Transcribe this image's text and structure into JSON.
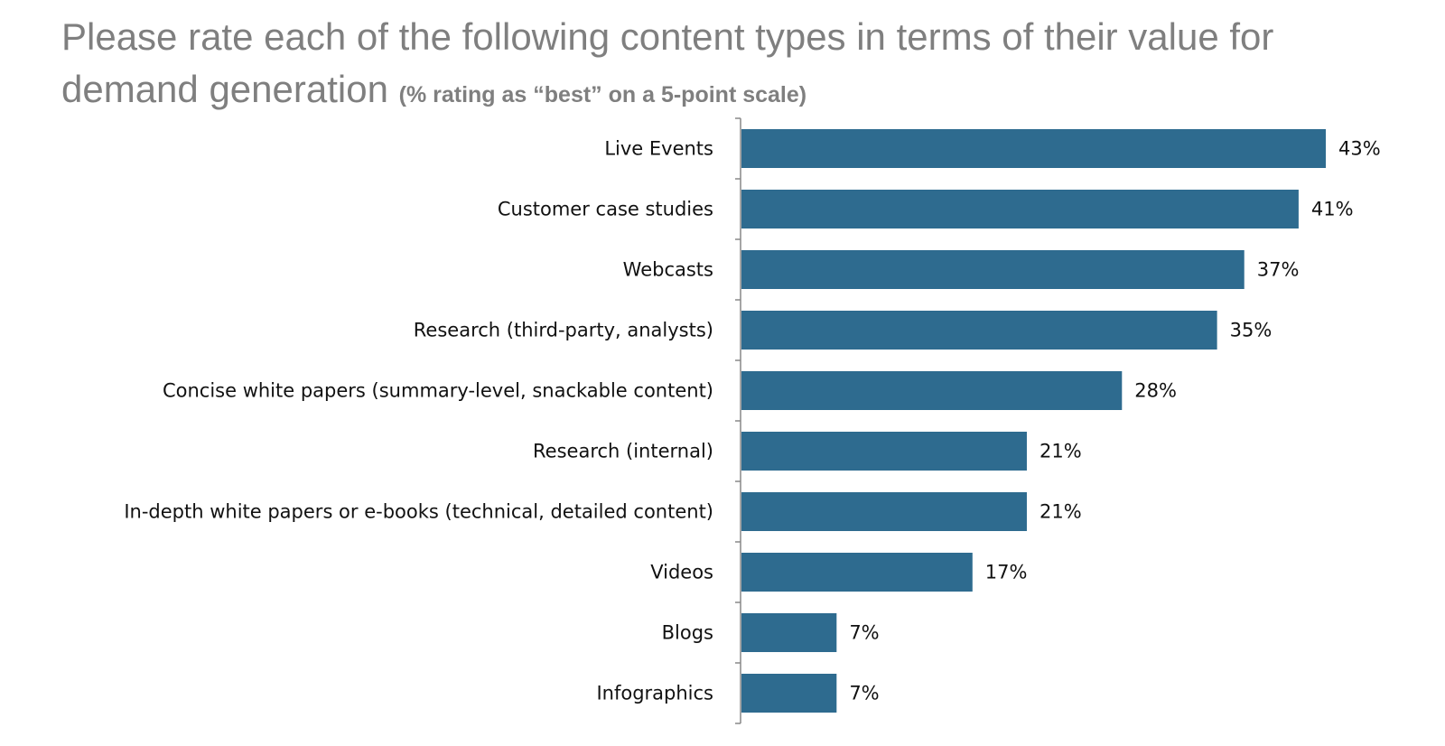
{
  "title": {
    "main": "Please rate each of the following content types in terms of their value for demand generation",
    "subtitle": "(% rating as “best” on a 5-point scale)"
  },
  "chart_data": {
    "type": "bar",
    "orientation": "horizontal",
    "title": "Please rate each of the following content types in terms of their value for demand generation",
    "subtitle": "(% rating as “best” on a 5-point scale)",
    "categories": [
      "Live Events",
      "Customer case studies",
      "Webcasts",
      "Research (third-party, analysts)",
      "Concise white papers (summary-level, snackable content)",
      "Research (internal)",
      "In-depth white papers or e-books (technical, detailed content)",
      "Videos",
      "Blogs",
      "Infographics"
    ],
    "values": [
      43,
      41,
      37,
      35,
      28,
      21,
      21,
      17,
      7,
      7
    ],
    "value_labels": [
      "43%",
      "41%",
      "37%",
      "35%",
      "28%",
      "21%",
      "21%",
      "17%",
      "7%",
      "7%"
    ],
    "xlim": [
      0,
      43
    ],
    "grid": false,
    "legend": "none",
    "bar_color": "#2e6b8f"
  }
}
